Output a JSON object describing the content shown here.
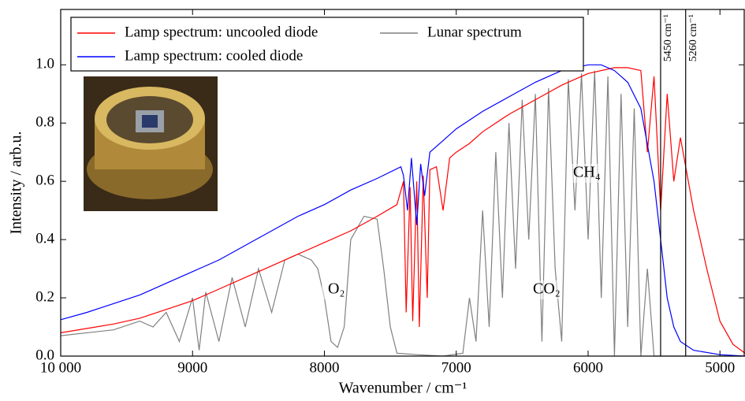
{
  "chart_data": {
    "type": "line",
    "xlabel": "Wavenumber / cm⁻¹",
    "ylabel": "Intensity / arb.u.",
    "xlim": [
      10000,
      4810
    ],
    "ylim": [
      0,
      1.19
    ],
    "xticks": [
      {
        "value": 10000,
        "label": "10 000"
      },
      9000,
      8000,
      7000,
      6000,
      5000
    ],
    "yticks": [
      {
        "value": 0,
        "label": "0.0"
      },
      {
        "value": 0.2,
        "label": "0.2"
      },
      {
        "value": 0.4,
        "label": "0.4"
      },
      {
        "value": 0.6,
        "label": "0.6"
      },
      {
        "value": 0.8,
        "label": "0.8"
      },
      {
        "value": 1,
        "label": "1.0"
      }
    ],
    "legend": "upper left",
    "series": [
      {
        "name": "Lunar spectrum",
        "color": "#808080",
        "x": [
          10000,
          9600,
          9400,
          9300,
          9200,
          9100,
          9000,
          8950,
          8900,
          8800,
          8700,
          8600,
          8500,
          8400,
          8300,
          8200,
          8100,
          8050,
          8000,
          7950,
          7900,
          7850,
          7800,
          7700,
          7600,
          7550,
          7500,
          7450,
          7300,
          7100,
          6950,
          6900,
          6850,
          6800,
          6750,
          6700,
          6650,
          6600,
          6550,
          6500,
          6450,
          6400,
          6350,
          6300,
          6250,
          6200,
          6150,
          6100,
          6050,
          6000,
          5950,
          5900,
          5850,
          5800,
          5750,
          5700,
          5650,
          5600,
          5550,
          5500,
          5400,
          4810
        ],
        "values": [
          0.07,
          0.09,
          0.12,
          0.1,
          0.15,
          0.05,
          0.2,
          0.02,
          0.22,
          0.05,
          0.27,
          0.1,
          0.3,
          0.15,
          0.33,
          0.35,
          0.33,
          0.3,
          0.2,
          0.05,
          0.03,
          0.1,
          0.4,
          0.48,
          0.47,
          0.3,
          0.1,
          0.01,
          0.005,
          0,
          0.01,
          0.2,
          0.05,
          0.5,
          0.1,
          0.7,
          0.2,
          0.8,
          0.3,
          0.88,
          0.4,
          0.9,
          0.05,
          0.92,
          0.3,
          0.05,
          0.95,
          0.5,
          0.97,
          0.4,
          0.98,
          0.2,
          0.96,
          0,
          0.9,
          0.1,
          0.85,
          0,
          0.3,
          0,
          0,
          0
        ]
      },
      {
        "name": "Lamp spectrum: uncooled diode",
        "color": "#ff0000",
        "x": [
          10000,
          9800,
          9600,
          9400,
          9200,
          9000,
          8800,
          8600,
          8400,
          8200,
          8000,
          7800,
          7600,
          7450,
          7400,
          7380,
          7350,
          7330,
          7300,
          7280,
          7250,
          7220,
          7200,
          7150,
          7100,
          7050,
          7000,
          6900,
          6800,
          6600,
          6400,
          6200,
          6000,
          5800,
          5700,
          5600,
          5550,
          5500,
          5450,
          5400,
          5350,
          5300,
          5200,
          5100,
          5000,
          4900,
          4810
        ],
        "values": [
          0.08,
          0.095,
          0.11,
          0.13,
          0.16,
          0.19,
          0.23,
          0.27,
          0.31,
          0.35,
          0.39,
          0.43,
          0.48,
          0.52,
          0.6,
          0.15,
          0.58,
          0.12,
          0.6,
          0.1,
          0.62,
          0.2,
          0.64,
          0.65,
          0.5,
          0.68,
          0.7,
          0.73,
          0.77,
          0.83,
          0.88,
          0.93,
          0.97,
          0.99,
          0.99,
          0.98,
          0.7,
          0.96,
          0.5,
          0.9,
          0.6,
          0.75,
          0.5,
          0.3,
          0.12,
          0.04,
          0.01
        ]
      },
      {
        "name": "Lamp spectrum: cooled diode",
        "color": "#0000ff",
        "x": [
          10000,
          9800,
          9600,
          9400,
          9200,
          9000,
          8800,
          8600,
          8400,
          8200,
          8000,
          7800,
          7600,
          7420,
          7400,
          7370,
          7340,
          7300,
          7270,
          7240,
          7200,
          7100,
          7000,
          6800,
          6600,
          6400,
          6200,
          6000,
          5900,
          5800,
          5700,
          5600,
          5500,
          5450,
          5400,
          5350,
          5300,
          5200,
          5000,
          4810
        ],
        "values": [
          0.125,
          0.15,
          0.18,
          0.21,
          0.25,
          0.29,
          0.33,
          0.38,
          0.43,
          0.48,
          0.52,
          0.57,
          0.61,
          0.65,
          0.62,
          0.5,
          0.68,
          0.45,
          0.66,
          0.55,
          0.7,
          0.74,
          0.78,
          0.84,
          0.89,
          0.94,
          0.98,
          1,
          1,
          0.98,
          0.94,
          0.85,
          0.6,
          0.4,
          0.2,
          0.1,
          0.05,
          0.02,
          0.005,
          0
        ]
      }
    ],
    "vlines": [
      {
        "x": 5450,
        "label": "5450 cm⁻¹"
      },
      {
        "x": 5260,
        "label": "5260 cm⁻¹"
      }
    ],
    "annotations": [
      "O₂",
      "CO₂",
      "CH₄"
    ]
  }
}
